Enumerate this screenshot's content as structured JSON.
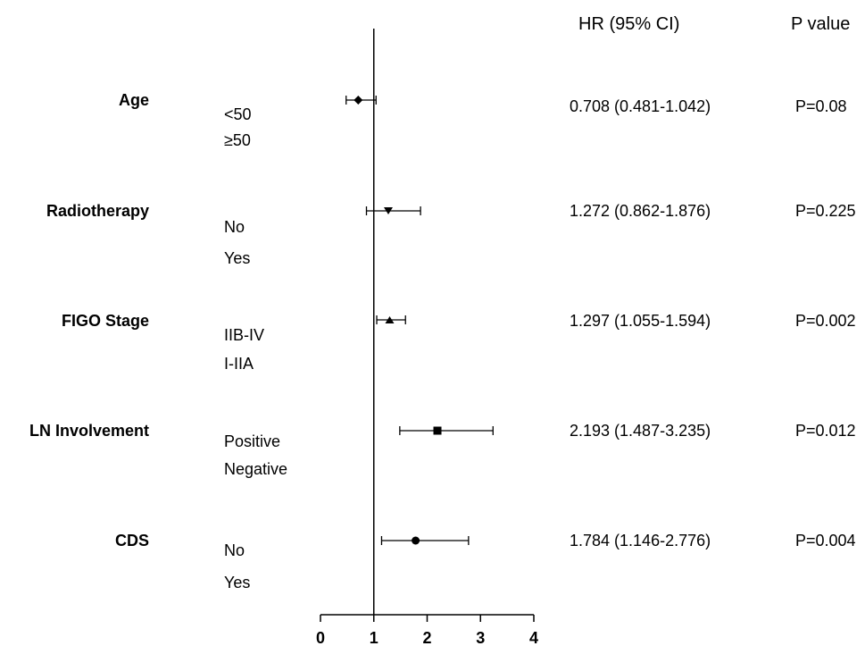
{
  "headers": {
    "hr": "HR (95% CI)",
    "p": "P value"
  },
  "chart_data": {
    "type": "forest",
    "xlim": [
      0,
      4
    ],
    "x_ticks": [
      "0",
      "1",
      "2",
      "3",
      "4"
    ],
    "reference_line": 1,
    "rows": [
      {
        "variable": "Age",
        "levels": [
          "<50",
          "≥50"
        ],
        "hr": 0.708,
        "ci_low": 0.481,
        "ci_high": 1.042,
        "marker": "diamond",
        "hr_text": "0.708 (0.481-1.042)",
        "p_text": "P=0.08"
      },
      {
        "variable": "Radiotherapy",
        "levels": [
          "No",
          "Yes"
        ],
        "hr": 1.272,
        "ci_low": 0.862,
        "ci_high": 1.876,
        "marker": "triangle-down",
        "hr_text": "1.272 (0.862-1.876)",
        "p_text": "P=0.225"
      },
      {
        "variable": "FIGO Stage",
        "levels": [
          "IIB-IV",
          "I-IIA"
        ],
        "hr": 1.297,
        "ci_low": 1.055,
        "ci_high": 1.594,
        "marker": "triangle-up",
        "hr_text": "1.297 (1.055-1.594)",
        "p_text": "P=0.002"
      },
      {
        "variable": "LN Involvement",
        "levels": [
          "Positive",
          "Negative"
        ],
        "hr": 2.193,
        "ci_low": 1.487,
        "ci_high": 3.235,
        "marker": "square",
        "hr_text": "2.193 (1.487-3.235)",
        "p_text": "P=0.012"
      },
      {
        "variable": "CDS",
        "levels": [
          "No",
          "Yes"
        ],
        "hr": 1.784,
        "ci_low": 1.146,
        "ci_high": 2.776,
        "marker": "circle",
        "hr_text": "1.784 (1.146-2.776)",
        "p_text": "P=0.004"
      }
    ]
  }
}
